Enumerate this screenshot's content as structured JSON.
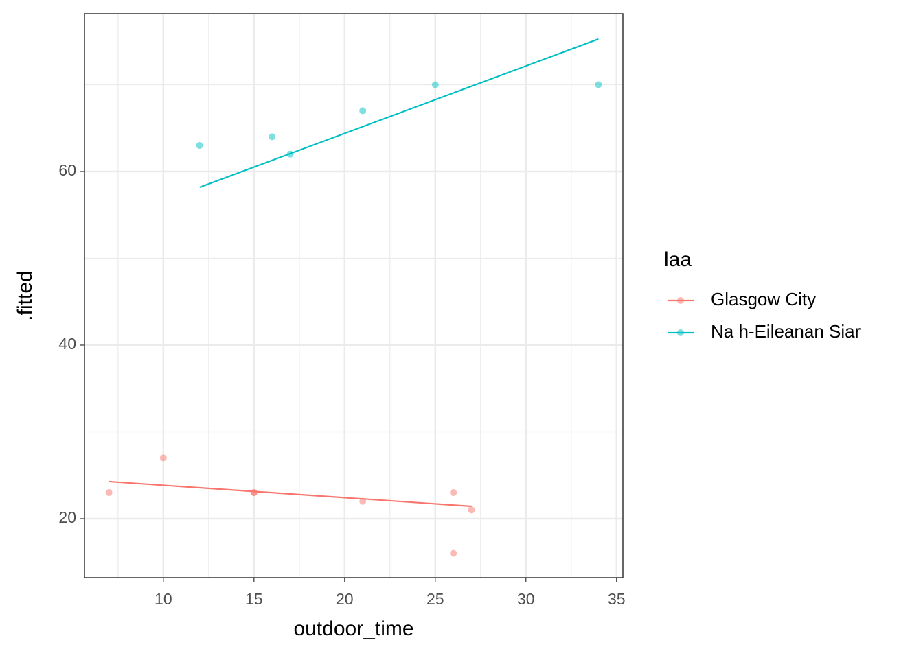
{
  "chart_data": {
    "type": "scatter",
    "x_label": "outdoor_time",
    "y_label": ".fitted",
    "legend_title": "laa",
    "legend_position": "right",
    "xlim": [
      5.65,
      35.35
    ],
    "ylim": [
      13.2,
      78.18
    ],
    "xticks": [
      10,
      15,
      20,
      25,
      30,
      35
    ],
    "yticks": [
      20,
      40,
      60
    ],
    "xminor": [
      7.5,
      12.5,
      17.5,
      22.5,
      27.5,
      32.5
    ],
    "yminor": [
      30,
      50,
      70
    ],
    "grid": true,
    "series": [
      {
        "name": "Glasgow City",
        "color": "#F8766D",
        "x": [
          7,
          10,
          15,
          15,
          21,
          26,
          26,
          27
        ],
        "values": [
          23,
          27,
          23,
          23,
          22,
          23,
          16,
          21
        ],
        "fit": {
          "x": [
            7,
            27
          ],
          "values": [
            24.27,
            21.42
          ]
        }
      },
      {
        "name": "Na h-Eileanan Siar",
        "color": "#00BFC4",
        "x": [
          12,
          16,
          17,
          21,
          25,
          34
        ],
        "values": [
          63,
          64,
          62,
          67,
          70,
          70
        ],
        "fit": {
          "x": [
            12,
            34
          ],
          "values": [
            58.18,
            75.26
          ]
        }
      }
    ]
  }
}
